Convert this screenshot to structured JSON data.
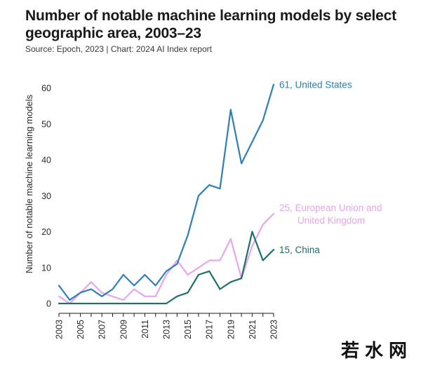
{
  "header": {
    "title": "Number of notable machine learning models by select geographic area, 2003–23",
    "source": "Source: Epoch, 2023 | Chart: 2024 AI Index report"
  },
  "watermark": {
    "text": "若水网"
  },
  "chart_data": {
    "type": "line",
    "title": "Number of notable machine learning models by select geographic area, 2003–23",
    "xlabel": "",
    "ylabel": "Number of notable machine learning models",
    "x": [
      2003,
      2004,
      2005,
      2006,
      2007,
      2008,
      2009,
      2010,
      2011,
      2012,
      2013,
      2014,
      2015,
      2016,
      2017,
      2018,
      2019,
      2020,
      2021,
      2022,
      2023
    ],
    "xticks": [
      "2003",
      "2005",
      "2007",
      "2009",
      "2011",
      "2013",
      "2015",
      "2017",
      "2019",
      "2021",
      "2023"
    ],
    "yticks": [
      "0",
      "10",
      "20",
      "30",
      "40",
      "50",
      "60"
    ],
    "xlim": [
      2003,
      2023
    ],
    "ylim": [
      0,
      65
    ],
    "grid": false,
    "series": [
      {
        "name": "United States",
        "label_lines": [
          "61, United States"
        ],
        "color": "#2c7fb8",
        "values": [
          5,
          1,
          3,
          4,
          2,
          4,
          8,
          5,
          8,
          5,
          9,
          11,
          19,
          30,
          33,
          32,
          54,
          39,
          45,
          51,
          61
        ]
      },
      {
        "name": "European Union and United Kingdom",
        "label_lines": [
          "25, European Union and",
          "United Kingdom"
        ],
        "color": "#e9a6ee",
        "values": [
          2,
          0,
          3,
          6,
          3,
          2,
          1,
          4,
          2,
          2,
          8,
          12,
          8,
          10,
          12,
          12,
          18,
          7,
          16,
          22,
          25
        ]
      },
      {
        "name": "China",
        "label_lines": [
          "15, China"
        ],
        "color": "#1f6f6b",
        "values": [
          0,
          0,
          0,
          0,
          0,
          0,
          0,
          0,
          0,
          0,
          0,
          2,
          3,
          8,
          9,
          4,
          6,
          7,
          20,
          12,
          15
        ]
      }
    ]
  }
}
